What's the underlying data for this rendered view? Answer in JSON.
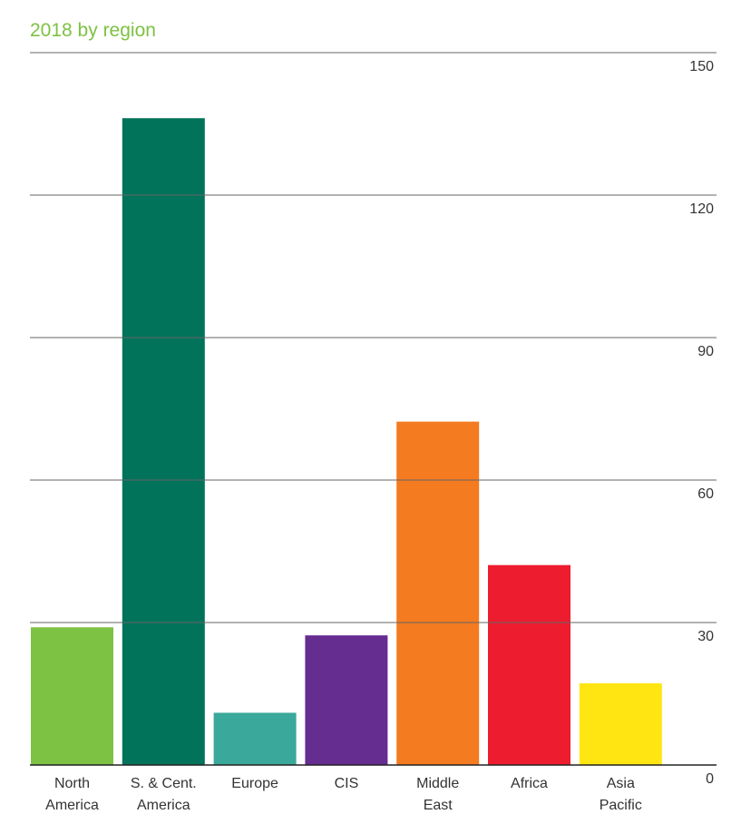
{
  "chart_data": {
    "type": "bar",
    "title": "2018 by region",
    "categories": [
      [
        "North",
        "America"
      ],
      [
        "S. & Cent.",
        "America"
      ],
      [
        "Europe"
      ],
      [
        "CIS"
      ],
      [
        "Middle",
        "East"
      ],
      [
        "Africa"
      ],
      [
        "Asia",
        "Pacific"
      ]
    ],
    "values": [
      29,
      136.2,
      11,
      27.3,
      72.3,
      42.1,
      17.2
    ],
    "colors": [
      "#7dc242",
      "#00735a",
      "#3aa89a",
      "#662d91",
      "#f47b20",
      "#ed1c2e",
      "#ffe512"
    ],
    "ylim": [
      0,
      150
    ],
    "yticks": [
      0,
      30,
      60,
      90,
      120,
      150
    ],
    "grid": true,
    "y_axis_side": "right"
  }
}
